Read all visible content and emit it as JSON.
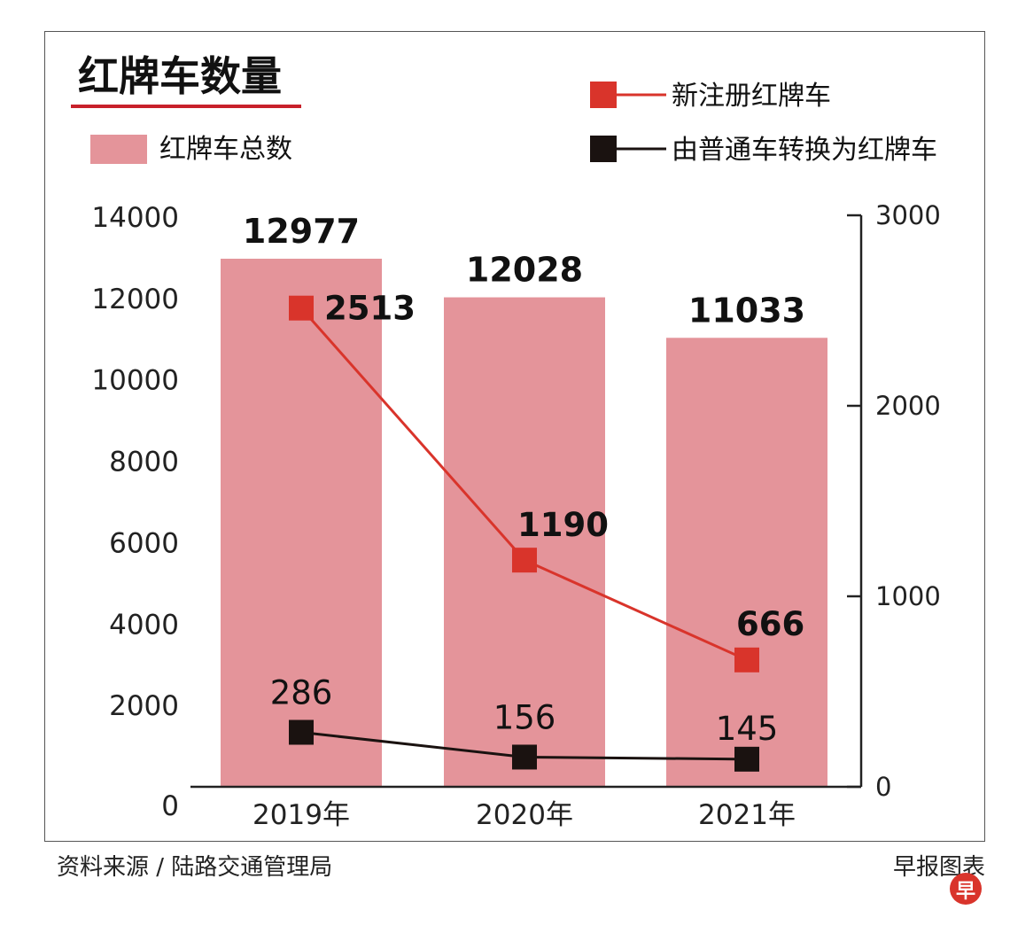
{
  "chart_data": {
    "type": "bar",
    "title": "红牌车数量",
    "categories": [
      "2019年",
      "2020年",
      "2021年"
    ],
    "bars": {
      "name": "红牌车总数",
      "values": [
        12977,
        12028,
        11033
      ],
      "color": "#e4949a",
      "axis": "left"
    },
    "lines": [
      {
        "name": "新注册红牌车",
        "values": [
          2513,
          1190,
          666
        ],
        "color": "#d9342b",
        "axis": "right"
      },
      {
        "name": "由普通车转换为红牌车",
        "values": [
          286,
          156,
          145
        ],
        "color": "#1a1210",
        "axis": "right"
      }
    ],
    "left_axis": {
      "ticks": [
        "14000",
        "12000",
        "10000",
        "8000",
        "6000",
        "4000",
        "2000",
        "0"
      ],
      "ylim": [
        0,
        14000
      ]
    },
    "right_axis": {
      "ticks": [
        "3000",
        "2000",
        "1000",
        "0"
      ],
      "ylim": [
        0,
        3000
      ]
    },
    "grid": false,
    "legend": "top"
  },
  "footer": {
    "source": "资料来源 / 陆路交通管理局",
    "credit": "早报图表",
    "logo_char": "早"
  },
  "colors": {
    "title_underline": "#c8202a",
    "logo": "#d9342b"
  }
}
